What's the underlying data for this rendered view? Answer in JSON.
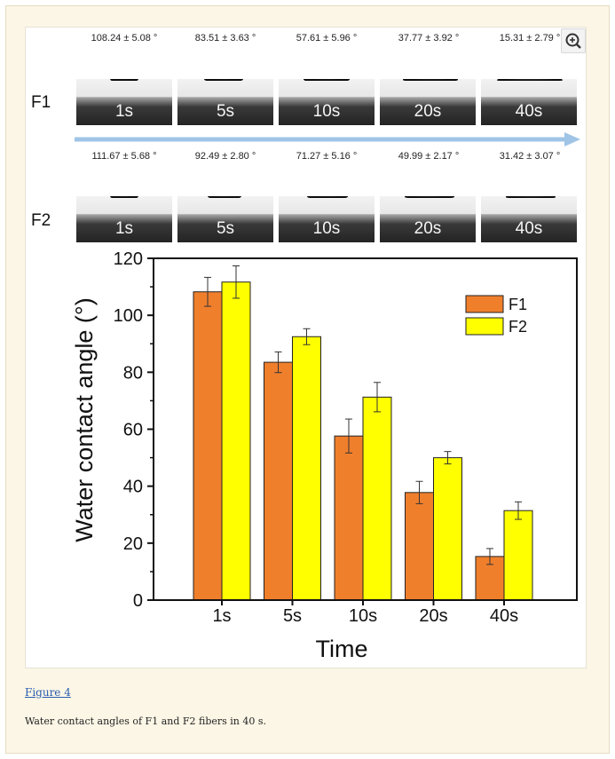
{
  "figure": {
    "link_label": "Figure 4",
    "caption": "Water contact angles of F1 and F2 fibers in 40 s."
  },
  "photos": {
    "rows": [
      {
        "label": "F1",
        "angles": [
          "108.24 ± 5.08 °",
          "83.51 ± 3.63 °",
          "57.61 ± 5.96 °",
          "37.77 ± 3.92 °",
          "15.31 ± 2.79 °"
        ]
      },
      {
        "label": "F2",
        "angles": [
          "111.67 ± 5.68 °",
          "92.49 ± 2.80 °",
          "71.27 ± 5.16 °",
          "49.99 ± 2.17 °",
          "31.42 ± 3.07 °"
        ]
      }
    ],
    "times": [
      "1s",
      "5s",
      "10s",
      "20s",
      "40s"
    ],
    "arrow_color": "#9fc4e6"
  },
  "zoom_icon": "zoom-in-icon",
  "chart_data": {
    "type": "bar",
    "categories": [
      "1s",
      "5s",
      "10s",
      "20s",
      "40s"
    ],
    "series": [
      {
        "name": "F1",
        "values": [
          108.24,
          83.51,
          57.61,
          37.77,
          15.31
        ],
        "errors": [
          5.08,
          3.63,
          5.96,
          3.92,
          2.79
        ],
        "color": "#f07f2c"
      },
      {
        "name": "F2",
        "values": [
          111.67,
          92.49,
          71.27,
          49.99,
          31.42
        ],
        "errors": [
          5.68,
          2.8,
          5.16,
          2.17,
          3.07
        ],
        "color": "#ffff00"
      }
    ],
    "xlabel": "Time",
    "ylabel": "Water contact angle (°)",
    "ylim": [
      0,
      120
    ],
    "yticks": [
      "0",
      "20",
      "40",
      "60",
      "80",
      "100",
      "120"
    ],
    "legend": "top-right",
    "grid": false
  }
}
